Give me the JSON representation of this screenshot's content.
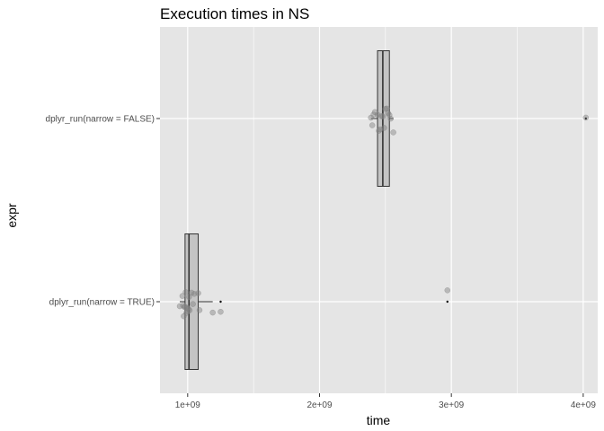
{
  "chart_data": {
    "type": "boxplot",
    "orientation": "horizontal",
    "title": "Execution times in NS",
    "xlabel": "time",
    "ylabel": "expr",
    "xlim": [
      790000000,
      4110000000
    ],
    "x_ticks": [
      1000000000,
      2000000000,
      3000000000,
      4000000000
    ],
    "x_tick_labels": [
      "1e+09",
      "2e+09",
      "3e+09",
      "4e+09"
    ],
    "grid": true,
    "categories": [
      "dplyr_run(narrow = TRUE)",
      "dplyr_run(narrow = FALSE)"
    ],
    "boxes": [
      {
        "category": "dplyr_run(narrow = TRUE)",
        "q1": 980000000,
        "median": 1010000000,
        "q3": 1080000000,
        "whisker_low": 940000000,
        "whisker_high": 1190000000,
        "outliers": [
          1250000000,
          2970000000
        ],
        "points": [
          940000000,
          960000000,
          965000000,
          970000000,
          975000000,
          980000000,
          985000000,
          990000000,
          995000000,
          1000000000,
          1005000000,
          1010000000,
          1015000000,
          1030000000,
          1040000000,
          1050000000,
          1080000000,
          1090000000,
          1190000000,
          1250000000,
          2970000000
        ]
      },
      {
        "category": "dplyr_run(narrow = FALSE)",
        "q1": 2440000000,
        "median": 2480000000,
        "q3": 2530000000,
        "whisker_low": 2390000000,
        "whisker_high": 2560000000,
        "outliers": [
          4020000000
        ],
        "points": [
          2390000000,
          2400000000,
          2410000000,
          2420000000,
          2440000000,
          2450000000,
          2460000000,
          2470000000,
          2480000000,
          2490000000,
          2500000000,
          2510000000,
          2520000000,
          2530000000,
          2540000000,
          2560000000,
          4020000000
        ]
      }
    ],
    "colors": {
      "panel": "#e5e5e5",
      "grid": "#ffffff",
      "box_fill": "#c4c4c4",
      "box_stroke": "#333333",
      "point": "#808080"
    }
  }
}
